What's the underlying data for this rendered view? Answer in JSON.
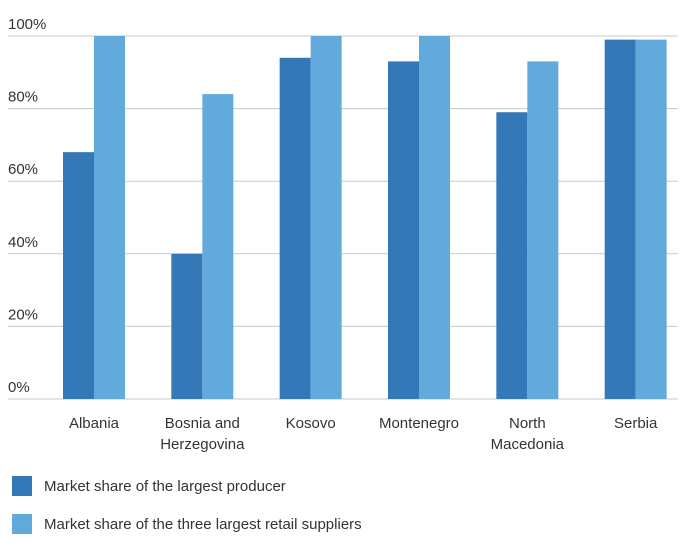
{
  "chart_data": {
    "type": "bar",
    "categories": [
      [
        "Albania"
      ],
      [
        "Bosnia and",
        "Herzegovina"
      ],
      [
        "Kosovo"
      ],
      [
        "Montenegro"
      ],
      [
        "North",
        "Macedonia"
      ],
      [
        "Serbia"
      ]
    ],
    "series": [
      {
        "name": "Market share of the largest producer",
        "color": "#3578b8",
        "values": [
          68,
          40,
          94,
          93,
          79,
          99
        ]
      },
      {
        "name": "Market share of the three largest retail suppliers",
        "color": "#62aadc",
        "values": [
          100,
          84,
          100,
          100,
          93,
          99
        ]
      }
    ],
    "ylim": [
      0,
      100
    ],
    "yticks": [
      0,
      20,
      40,
      60,
      80,
      100
    ],
    "ytick_labels": [
      "0%",
      "20%",
      "40%",
      "60%",
      "80%",
      "100%"
    ],
    "grid": true,
    "legend_position": "bottom-left",
    "gridline_color": "#c8c8c8"
  },
  "legend": {
    "items": [
      {
        "label": "Market share of the largest producer",
        "color": "#3578b8"
      },
      {
        "label": "Market share of the three largest retail suppliers",
        "color": "#62aadc"
      }
    ]
  }
}
